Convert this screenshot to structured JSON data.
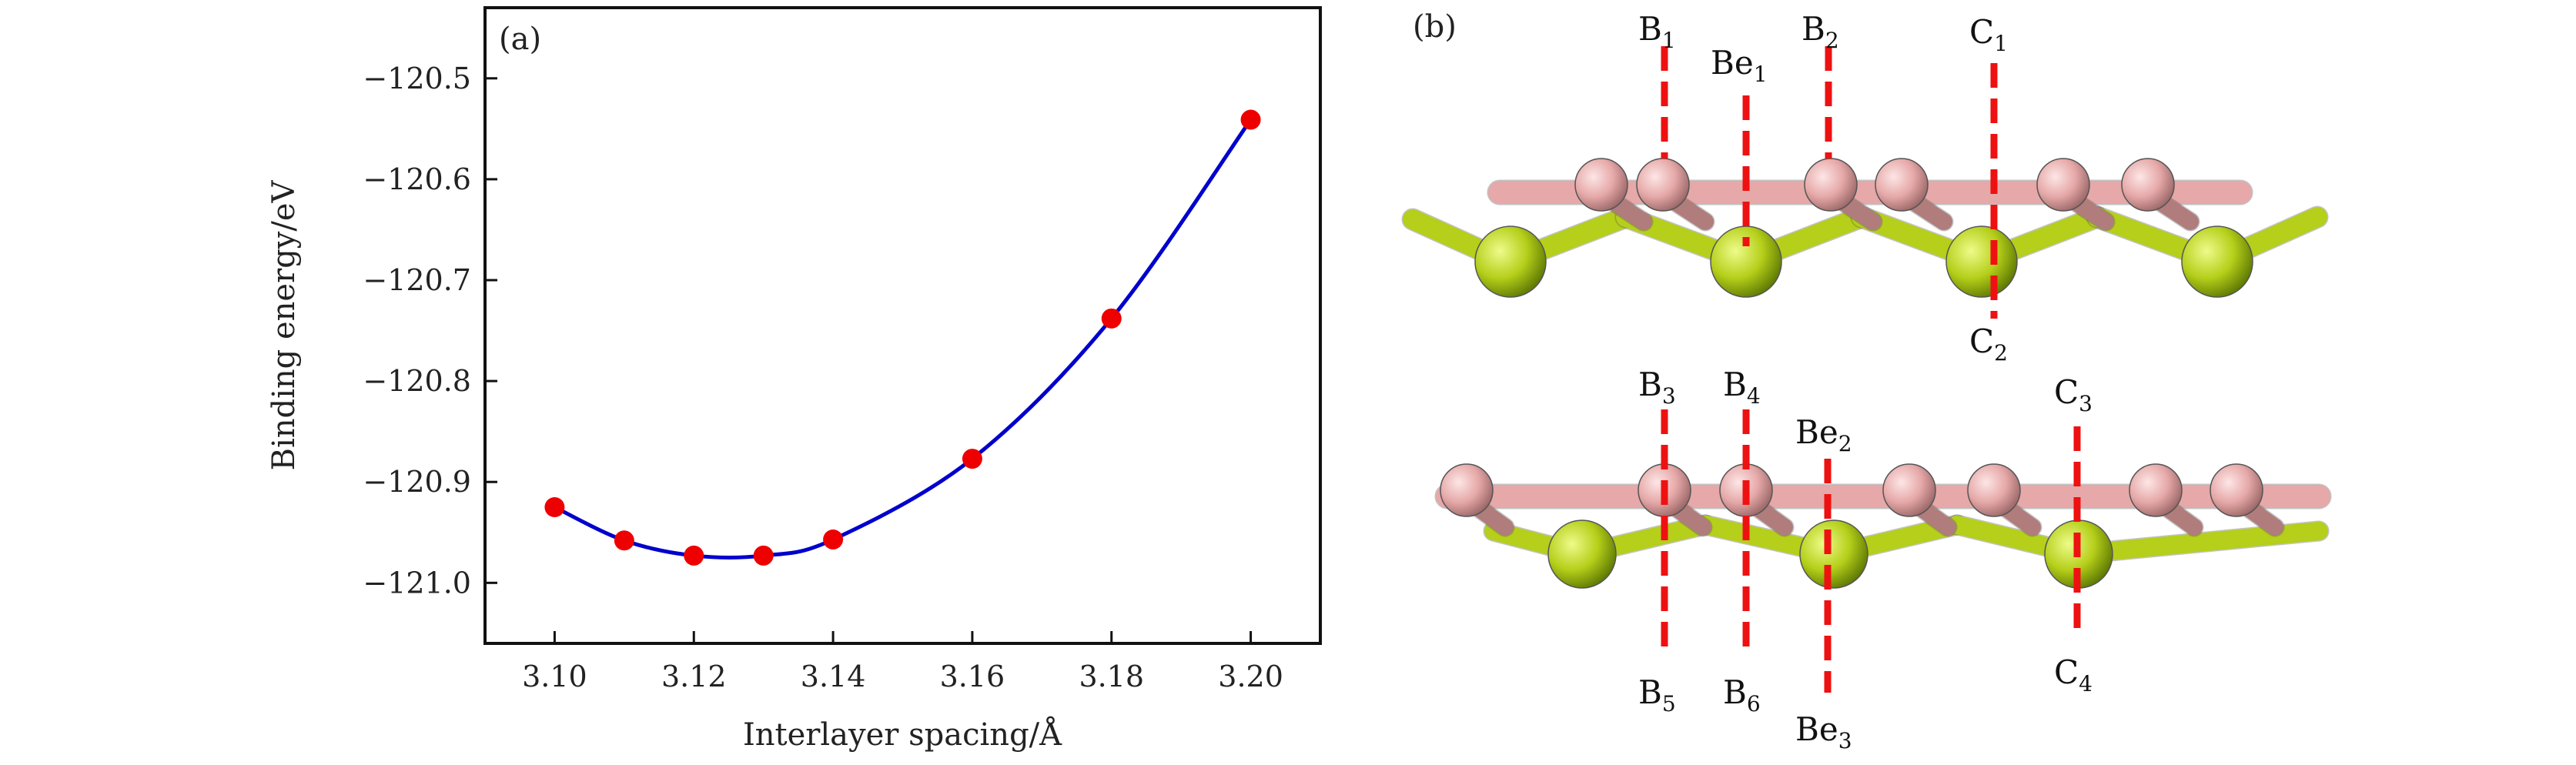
{
  "chart_data": {
    "type": "line",
    "panel_label": "(a)",
    "xlabel": "Interlayer spacing/Å",
    "ylabel": "Binding energy/eV",
    "xlim": [
      3.09,
      3.21
    ],
    "ylim": [
      -121.06,
      -120.43
    ],
    "x_ticks": [
      "3.10",
      "3.12",
      "3.14",
      "3.16",
      "3.18",
      "3.20"
    ],
    "x_tick_values": [
      3.1,
      3.12,
      3.14,
      3.16,
      3.18,
      3.2
    ],
    "y_ticks": [
      "−120.5",
      "−120.6",
      "−120.7",
      "−120.8",
      "−120.9",
      "−121.0"
    ],
    "y_tick_values": [
      -120.5,
      -120.6,
      -120.7,
      -120.8,
      -120.9,
      -121.0
    ],
    "series": [
      {
        "x": [
          3.1,
          3.11,
          3.12,
          3.13,
          3.14,
          3.16,
          3.18,
          3.2
        ],
        "y": [
          -120.925,
          -120.958,
          -120.973,
          -120.973,
          -120.957,
          -120.877,
          -120.738,
          -120.541
        ],
        "line_color": "#0000cc",
        "marker_color": "#ee0000"
      }
    ],
    "grid": false
  },
  "structure": {
    "panel_label": "(b)",
    "colors": {
      "boron": "#e6a8a8",
      "boron_dark": "#b07c7c",
      "beryllium": "#b5cf1a",
      "beryllium_dark": "#6e8a05",
      "marker": "#ee1111"
    },
    "top_view": {
      "labels_above": [
        {
          "main": "B",
          "sub": "1"
        },
        {
          "main": "Be",
          "sub": "1"
        },
        {
          "main": "B",
          "sub": "2"
        },
        {
          "main": "C",
          "sub": "1"
        }
      ],
      "labels_below": [
        {
          "main": "C",
          "sub": "2"
        }
      ]
    },
    "bottom_view": {
      "labels_above": [
        {
          "main": "B",
          "sub": "3"
        },
        {
          "main": "B",
          "sub": "4"
        },
        {
          "main": "Be",
          "sub": "2"
        },
        {
          "main": "C",
          "sub": "3"
        }
      ],
      "labels_below": [
        {
          "main": "B",
          "sub": "5"
        },
        {
          "main": "B",
          "sub": "6"
        },
        {
          "main": "Be",
          "sub": "3"
        },
        {
          "main": "C",
          "sub": "4"
        }
      ]
    }
  }
}
